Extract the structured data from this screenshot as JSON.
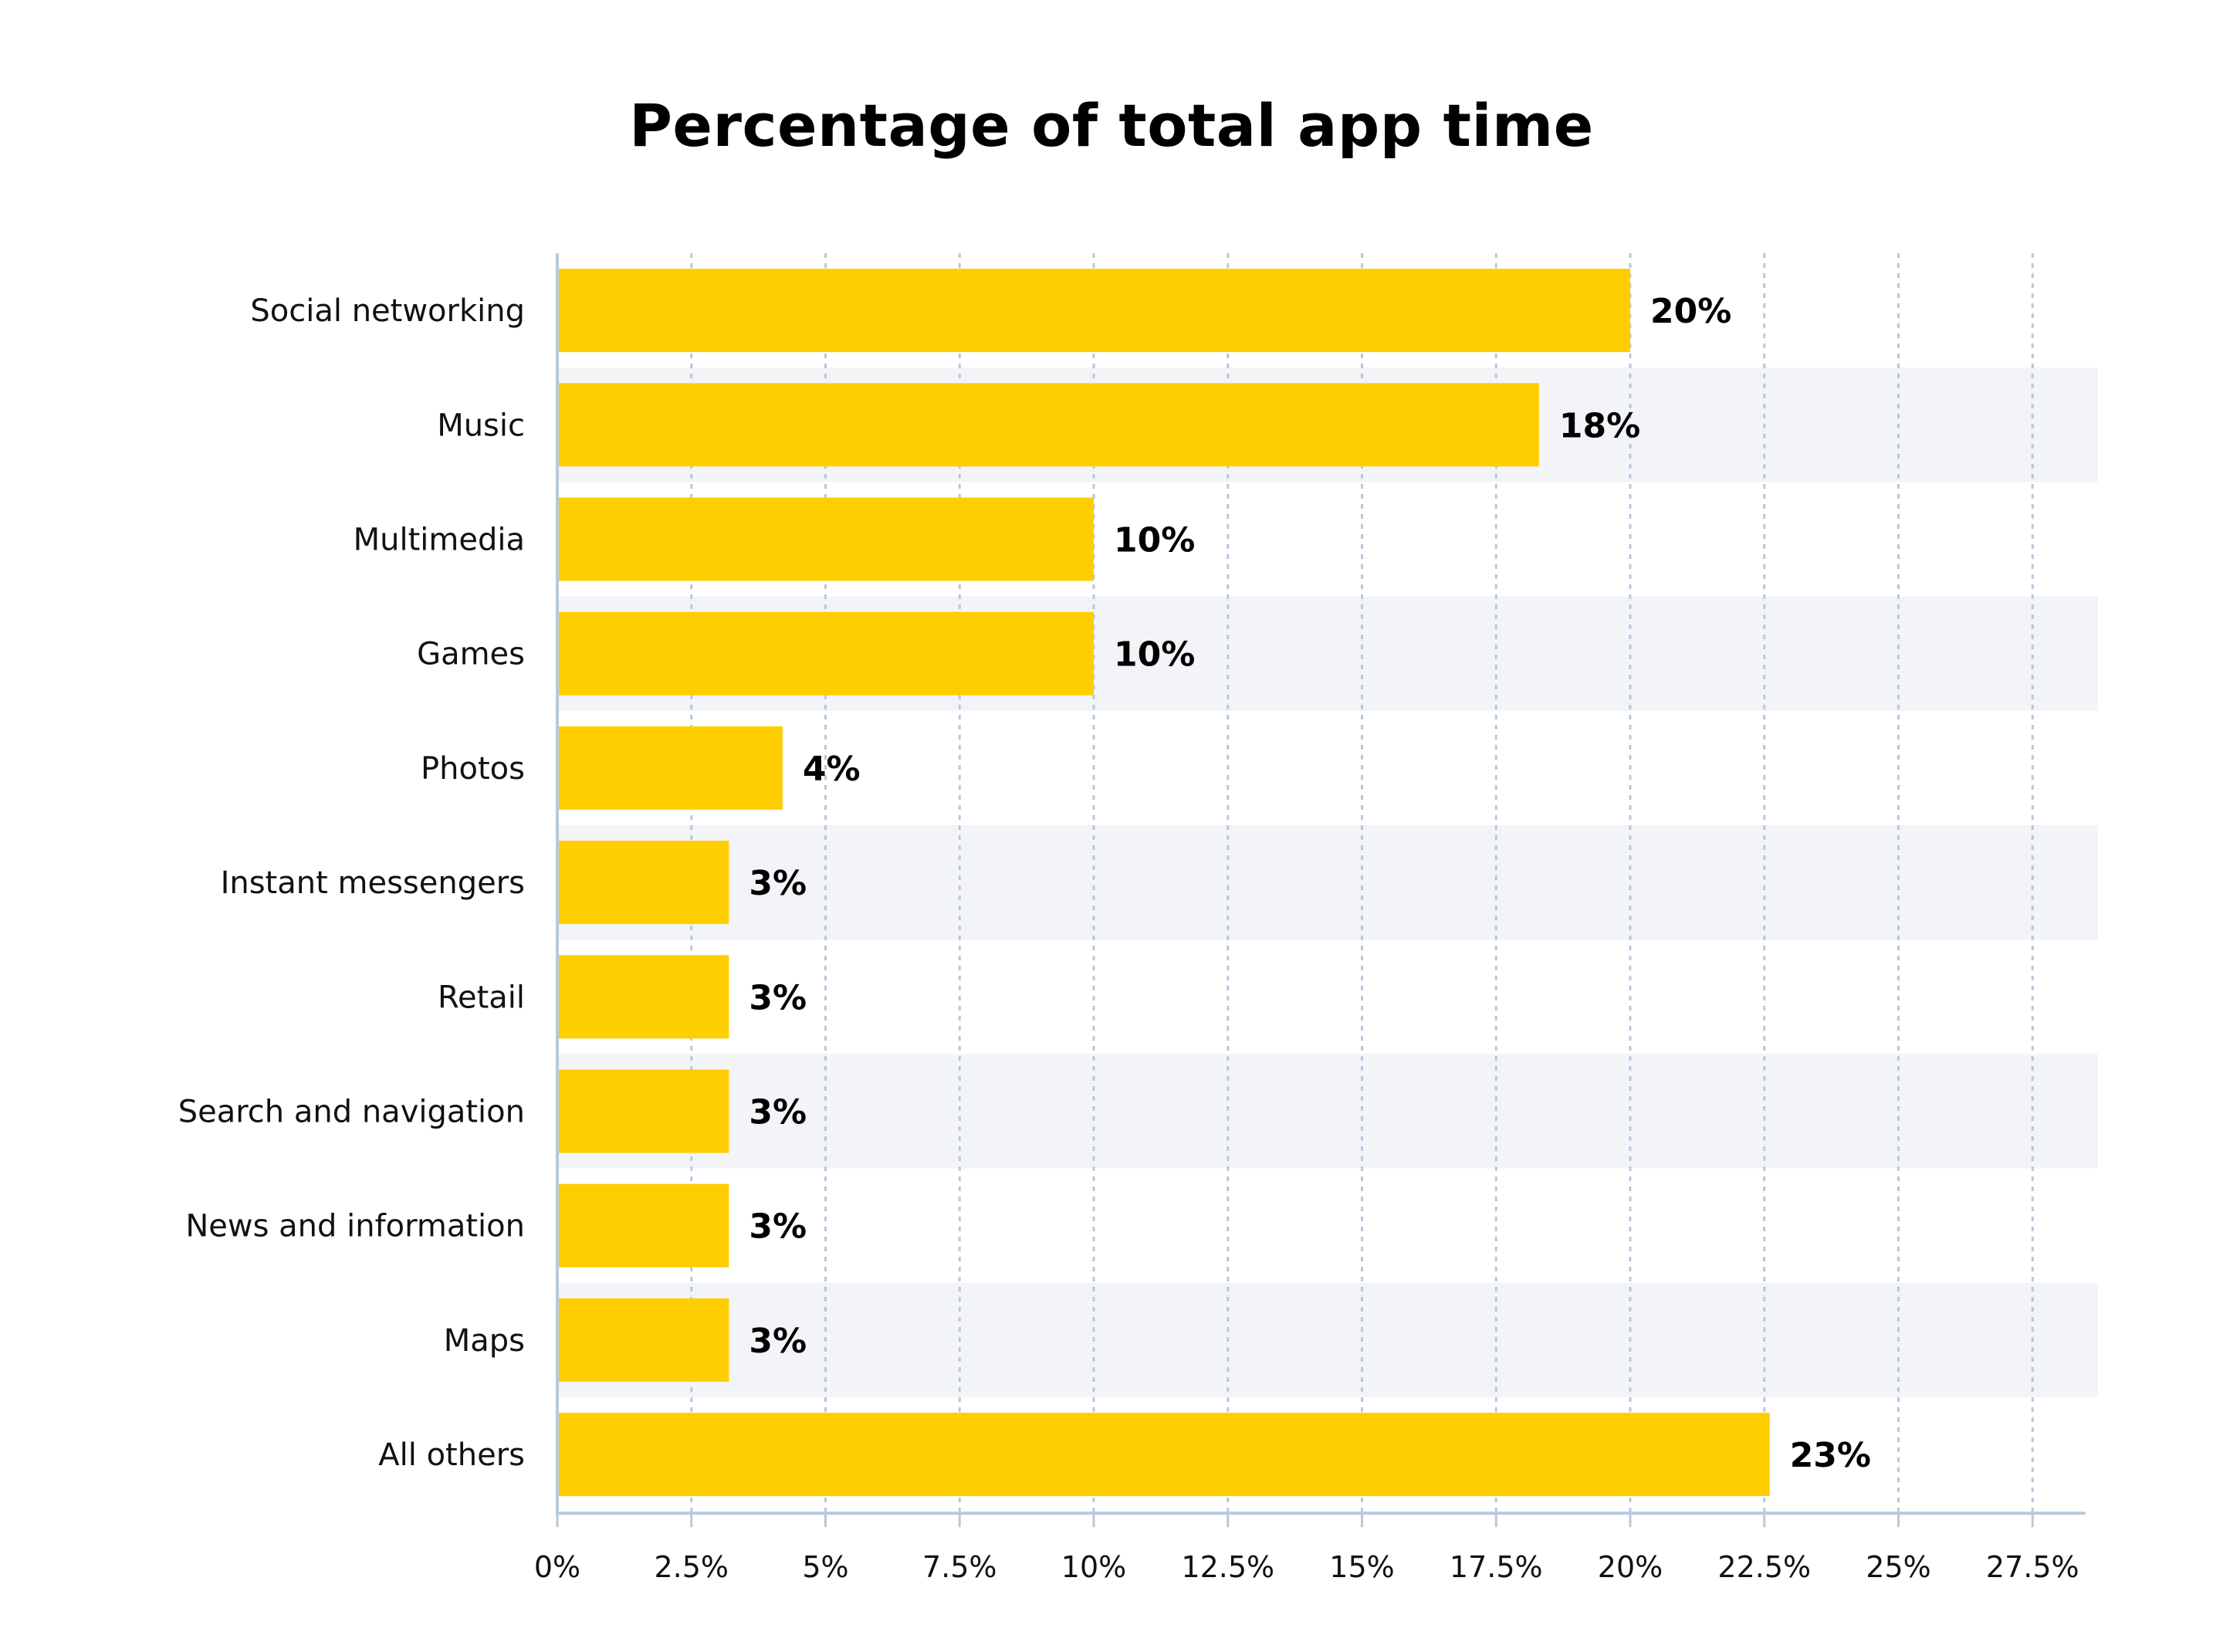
{
  "chart_data": {
    "type": "bar",
    "orientation": "horizontal",
    "title": "Percentage of total app time",
    "xlabel": "",
    "ylabel": "",
    "categories": [
      "Social networking",
      "Music",
      "Multimedia",
      "Games",
      "Photos",
      "Instant messengers",
      "Retail",
      "Search and navigation",
      "News and information",
      "Maps",
      "All others"
    ],
    "values": [
      20,
      18.3,
      10,
      10,
      4.2,
      3.2,
      3.2,
      3.2,
      3.2,
      3.2,
      22.6
    ],
    "data_labels": [
      "20%",
      "18%",
      "10%",
      "10%",
      "4%",
      "3%",
      "3%",
      "3%",
      "3%",
      "3%",
      "23%"
    ],
    "xlim": [
      0,
      28.5
    ],
    "xticks": [
      0,
      2.5,
      5,
      7.5,
      10,
      12.5,
      15,
      17.5,
      20,
      22.5,
      25,
      27.5
    ],
    "xtick_labels": [
      "0%",
      "2.5%",
      "5%",
      "7.5%",
      "10%",
      "12.5%",
      "15%",
      "17.5%",
      "20%",
      "22.5%",
      "25%",
      "27.5%"
    ],
    "grid": "vertical-dashed",
    "legend": "none",
    "colors": {
      "bar": "#FFCE00",
      "band": "#F2F4F8",
      "grid": "#B8C8DC",
      "axis": "#B8C8DC"
    }
  }
}
